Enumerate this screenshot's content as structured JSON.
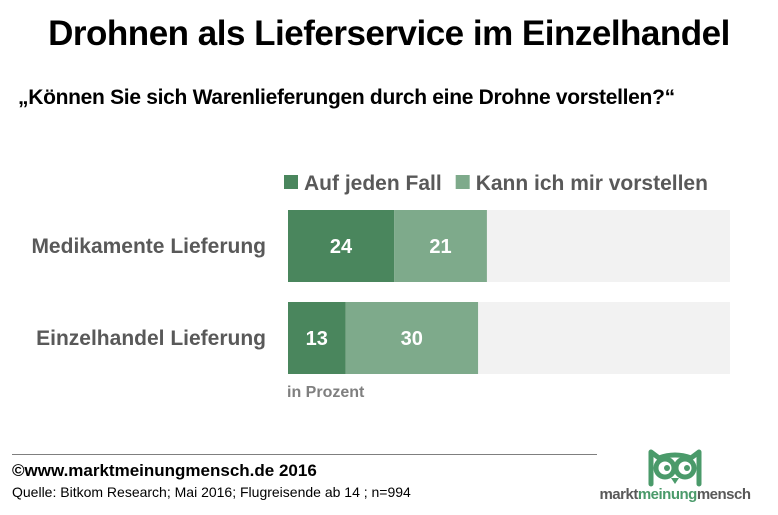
{
  "header": {
    "title": "Drohnen als Lieferservice im Einzelhandel",
    "subtitle": "„Können Sie sich Warenlieferungen durch eine Drohne vorstellen?“"
  },
  "chart_data": {
    "type": "bar",
    "orientation": "horizontal",
    "stacked": true,
    "categories": [
      "Medikamente Lieferung",
      "Einzelhandel Lieferung"
    ],
    "series": [
      {
        "name": "Auf jeden Fall",
        "values": [
          24,
          13
        ],
        "color": "#4a865d"
      },
      {
        "name": "Kann ich mir vorstellen",
        "values": [
          21,
          30
        ],
        "color": "#7eaa8b"
      }
    ],
    "background_color": "#f2f2f2",
    "xlim": [
      0,
      100
    ],
    "unit_label": "in Prozent",
    "legend_position": "top",
    "grid": false
  },
  "footer": {
    "copyright": "©www.marktmeinungmensch.de 2016",
    "source": "Quelle: Bitkom Research; Mai 2016; Flugreisende ab 14 ; n=994"
  },
  "logo": {
    "part1": "markt",
    "part2": "meinung",
    "part3": "mensch"
  }
}
